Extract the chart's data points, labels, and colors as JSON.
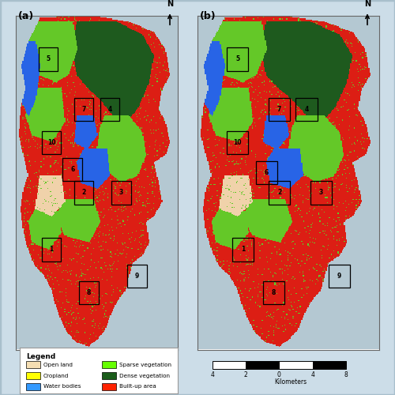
{
  "title_a": "(a)",
  "title_b": "(b)",
  "legend_title": "Legend",
  "legend_items": [
    {
      "label": "Open land",
      "color": "#f5deb3"
    },
    {
      "label": "Cropland",
      "color": "#ffff00"
    },
    {
      "label": "Water bodies",
      "color": "#3399ff"
    },
    {
      "label": "Sparse vegetation",
      "color": "#66ff00"
    },
    {
      "label": "Dense vegetation",
      "color": "#1a5c1a"
    },
    {
      "label": "Built-up area",
      "color": "#ff2200"
    }
  ],
  "scale_label": "Kilometers",
  "scale_ticks": [
    "4",
    "2",
    "0",
    "4",
    "8"
  ],
  "border_color": "#a8bfcc",
  "background_color": "#ccdde8",
  "fig_background": "#ccdde8",
  "map_background": "#ccdde8"
}
